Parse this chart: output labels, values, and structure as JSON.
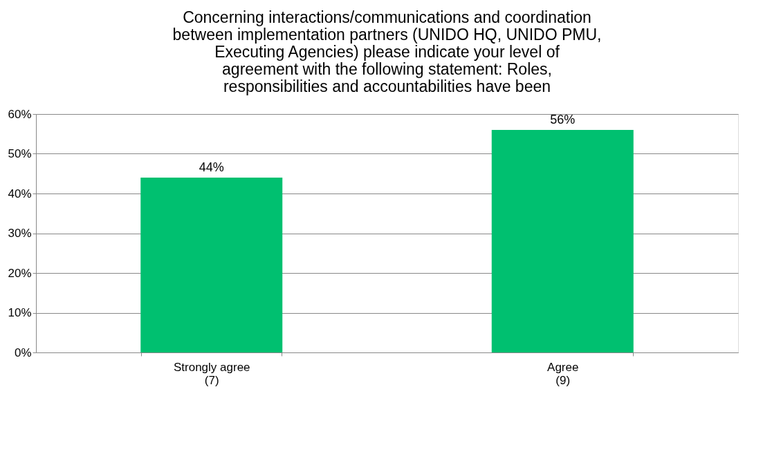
{
  "chart_data": {
    "type": "bar",
    "title": "Concerning interactions/communications and coordination between implementation partners (UNIDO HQ, UNIDO PMU, Executing Agencies) please indicate your level of agreement with the following statement: Roles, responsibilities and accountabilities have been",
    "categories": [
      "Strongly agree\n(7)",
      "Agree\n(9)"
    ],
    "values": [
      44,
      56
    ],
    "value_labels": [
      "44%",
      "56%"
    ],
    "color": "#00c070",
    "ylim": [
      0,
      60
    ],
    "yticks": [
      {
        "value": 0,
        "label": "0%"
      },
      {
        "value": 10,
        "label": "10%"
      },
      {
        "value": 20,
        "label": "20%"
      },
      {
        "value": 30,
        "label": "30%"
      },
      {
        "value": 40,
        "label": "40%"
      },
      {
        "value": 50,
        "label": "50%"
      },
      {
        "value": 60,
        "label": "60%"
      }
    ],
    "grid": "y"
  }
}
